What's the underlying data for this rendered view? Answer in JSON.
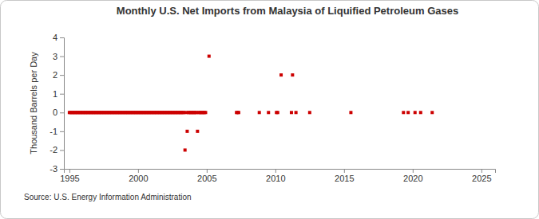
{
  "chart_data": {
    "type": "scatter",
    "title": "Monthly U.S. Net Imports from Malaysia of Liquified Petroleum Gases",
    "y_label": "Thousand Barrels per Day",
    "source": "Source: U.S. Energy Information Administration",
    "marker": "square",
    "color": "#cc0000",
    "grid": false,
    "xlim": [
      1994.6,
      2026
    ],
    "xticks": [
      1995,
      2000,
      2005,
      2010,
      2015,
      2020,
      2025
    ],
    "ylim": [
      -3,
      4
    ],
    "yticks": [
      -3,
      -2,
      -1,
      0,
      1,
      2,
      3,
      4
    ],
    "x": [
      1995,
      1995.08,
      1995.17,
      1995.25,
      1995.33,
      1995.42,
      1995.5,
      1995.58,
      1995.67,
      1995.75,
      1995.83,
      1995.92,
      1996,
      1996.08,
      1996.17,
      1996.25,
      1996.33,
      1996.42,
      1996.5,
      1996.58,
      1996.67,
      1996.75,
      1996.83,
      1996.92,
      1997,
      1997.08,
      1997.17,
      1997.25,
      1997.33,
      1997.42,
      1997.5,
      1997.58,
      1997.67,
      1997.75,
      1997.83,
      1997.92,
      1998,
      1998.08,
      1998.17,
      1998.25,
      1998.33,
      1998.42,
      1998.5,
      1998.58,
      1998.67,
      1998.75,
      1998.83,
      1998.92,
      1999,
      1999.08,
      1999.17,
      1999.25,
      1999.33,
      1999.42,
      1999.5,
      1999.58,
      1999.67,
      1999.75,
      1999.83,
      1999.92,
      2000,
      2000.08,
      2000.17,
      2000.25,
      2000.33,
      2000.42,
      2000.5,
      2000.58,
      2000.67,
      2000.75,
      2000.83,
      2000.92,
      2001,
      2001.08,
      2001.17,
      2001.25,
      2001.33,
      2001.42,
      2001.5,
      2001.58,
      2001.67,
      2001.75,
      2001.83,
      2001.92,
      2002,
      2002.08,
      2002.17,
      2002.25,
      2002.33,
      2002.42,
      2002.5,
      2002.58,
      2002.67,
      2002.75,
      2002.83,
      2002.92,
      2003,
      2003.08,
      2003.17,
      2003.25,
      2003.33,
      2003.42,
      2003.5,
      2003.58,
      2003.67,
      2003.75,
      2003.83,
      2003.92,
      2004,
      2004.08,
      2004.17,
      2004.25,
      2004.33,
      2004.42,
      2004.5,
      2004.58,
      2004.67,
      2004.75,
      2004.83,
      2004.92,
      2005.17,
      2007.17,
      2007.25,
      2007.33,
      2008.83,
      2009.5,
      2010.08,
      2010.17,
      2010.42,
      2011.17,
      2011.25,
      2011.5,
      2012.5,
      2015.5,
      2019.33,
      2019.67,
      2020.17,
      2020.58,
      2021.42
    ],
    "values": [
      0,
      0,
      0,
      0,
      0,
      0,
      0,
      0,
      0,
      0,
      0,
      0,
      0,
      0,
      0,
      0,
      0,
      0,
      0,
      0,
      0,
      0,
      0,
      0,
      0,
      0,
      0,
      0,
      0,
      0,
      0,
      0,
      0,
      0,
      0,
      0,
      0,
      0,
      0,
      0,
      0,
      0,
      0,
      0,
      0,
      0,
      0,
      0,
      0,
      0,
      0,
      0,
      0,
      0,
      0,
      0,
      0,
      0,
      0,
      0,
      0,
      0,
      0,
      0,
      0,
      0,
      0,
      0,
      0,
      0,
      0,
      0,
      0,
      0,
      0,
      0,
      0,
      0,
      0,
      0,
      0,
      0,
      0,
      0,
      0,
      0,
      0,
      0,
      0,
      0,
      0,
      0,
      0,
      0,
      0,
      0,
      0,
      0,
      0,
      0,
      0,
      -2,
      0,
      -1,
      0,
      0,
      0,
      0,
      0,
      0,
      0,
      0,
      -1,
      0,
      0,
      0,
      0,
      0,
      0,
      0,
      3,
      0,
      0,
      0,
      0,
      0,
      0,
      0,
      2,
      0,
      2,
      0,
      0,
      0,
      0,
      0,
      0,
      0,
      0
    ]
  }
}
